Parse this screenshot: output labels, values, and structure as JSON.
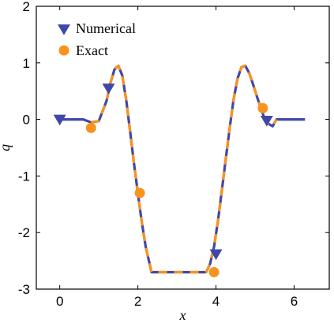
{
  "chart_data": {
    "type": "line",
    "xlabel": "x",
    "ylabel": "q",
    "xlim": [
      -0.6,
      6.9
    ],
    "ylim": [
      -3,
      2
    ],
    "xticks": [
      0,
      2,
      4,
      6
    ],
    "yticks": [
      2,
      1,
      0,
      -1,
      -2,
      -3
    ],
    "grid": false,
    "legend": {
      "position": "top-left"
    },
    "colors": {
      "numerical": "#3f48a8",
      "exact": "#f7931e"
    },
    "series": [
      {
        "name": "Numerical",
        "marker": "triangle-down",
        "x": [
          0.0,
          0.2,
          0.4,
          0.6,
          0.8,
          1.0,
          1.2,
          1.3,
          1.4,
          1.5,
          1.6,
          1.7,
          1.8,
          1.9,
          2.0,
          2.1,
          2.2,
          2.35,
          2.6,
          3.0,
          3.4,
          3.75,
          3.85,
          3.95,
          4.05,
          4.15,
          4.25,
          4.35,
          4.45,
          4.55,
          4.65,
          4.75,
          4.85,
          4.95,
          5.05,
          5.15,
          5.25,
          5.35,
          5.45,
          5.55,
          5.7,
          6.0,
          6.28
        ],
        "y": [
          0.0,
          0.0,
          0.0,
          0.0,
          -0.05,
          -0.03,
          0.33,
          0.65,
          0.88,
          0.95,
          0.78,
          0.35,
          -0.2,
          -0.78,
          -1.3,
          -1.82,
          -2.25,
          -2.7,
          -2.7,
          -2.7,
          -2.7,
          -2.7,
          -2.55,
          -2.25,
          -1.8,
          -1.25,
          -0.7,
          -0.15,
          0.35,
          0.72,
          0.92,
          0.95,
          0.82,
          0.62,
          0.4,
          0.2,
          0.0,
          -0.08,
          -0.12,
          0.0,
          0.0,
          0.0,
          0.0
        ],
        "marker_points": [
          {
            "x": 0.0,
            "y": 0.0
          },
          {
            "x": 1.25,
            "y": 0.55
          },
          {
            "x": 4.0,
            "y": -2.38
          },
          {
            "x": 5.3,
            "y": -0.02
          }
        ]
      },
      {
        "name": "Exact",
        "marker": "circle",
        "marker_points": [
          {
            "x": 0.8,
            "y": -0.15
          },
          {
            "x": 2.05,
            "y": -1.3
          },
          {
            "x": 3.95,
            "y": -2.7
          },
          {
            "x": 5.2,
            "y": 0.2
          }
        ]
      }
    ]
  }
}
